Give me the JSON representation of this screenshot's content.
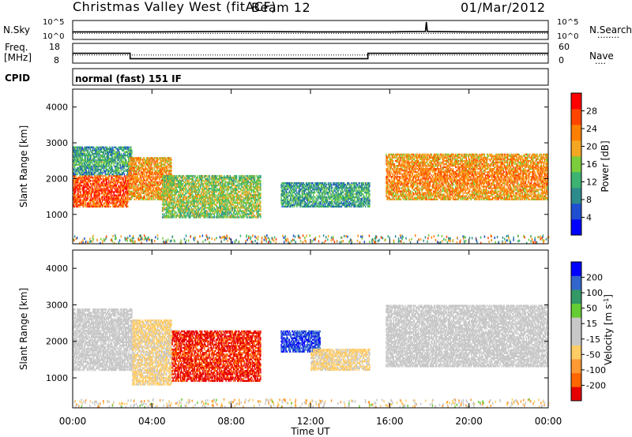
{
  "header": {
    "site": "Christmas Valley West (fitACF)",
    "beam": "Beam 12",
    "date": "01/Mar/2012"
  },
  "nsky_panel": {
    "left_label": "N.Sky",
    "left_ticks": [
      "10^5",
      "10^0"
    ],
    "right_ticks": [
      "10^5",
      "10^0"
    ],
    "right_label": "N.Search",
    "right_dots": "........"
  },
  "freq_panel": {
    "label_line1": "Freq.",
    "label_line2": "[MHz]",
    "left_ticks": [
      "18",
      "8"
    ],
    "right_ticks": [
      "60",
      "0"
    ],
    "right_label": "Nave",
    "right_dots": "...."
  },
  "cpid_panel": {
    "label": "CPID",
    "text": "normal (fast) 151 IF"
  },
  "x_axis": {
    "label": "Time UT",
    "ticks": [
      "00:00",
      "04:00",
      "08:00",
      "12:00",
      "16:00",
      "20:00",
      "00:00"
    ]
  },
  "power_panel": {
    "ylabel": "Slant Range [km]",
    "yticks": [
      "4000",
      "3000",
      "2000",
      "1000"
    ],
    "colorbar_label": "Power [dB]",
    "colorbar_ticks": [
      "28",
      "24",
      "20",
      "16",
      "12",
      "8",
      "4"
    ]
  },
  "velocity_panel": {
    "ylabel": "Slant Range [km]",
    "yticks": [
      "4000",
      "3000",
      "2000",
      "1000"
    ],
    "colorbar_label": "Velocity [m s",
    "colorbar_label_sup": "-1",
    "colorbar_label_end": "]",
    "colorbar_ticks": [
      "200",
      "100",
      "50",
      "15",
      "-15",
      "-50",
      "-100",
      "-200"
    ]
  },
  "colors": {
    "power_scale": [
      "#0000ff",
      "#1f4fd0",
      "#2e8b8b",
      "#3cb371",
      "#7ccd3c",
      "#f5a623",
      "#ff7f00",
      "#ff4500",
      "#ff0000"
    ],
    "velocity_scale": [
      "#e60000",
      "#ff6600",
      "#ff9933",
      "#ffcc66",
      "#c8c8c8",
      "#c8c8c8",
      "#66cc33",
      "#339966",
      "#3366cc",
      "#0000ff"
    ]
  },
  "chart_data": [
    {
      "type": "line",
      "title": "N.Sky / N.Search",
      "x_range_hours": [
        0,
        24
      ],
      "series": [
        {
          "name": "N.Sky",
          "x": [
            0,
            4,
            8,
            12,
            16,
            17.8,
            17.85,
            17.9,
            20,
            24
          ],
          "values": [
            2.0,
            2.0,
            2.1,
            2.0,
            2.0,
            2.1,
            4.6,
            2.1,
            2.0,
            2.0
          ]
        },
        {
          "name": "N.Search",
          "x": [
            0,
            24
          ],
          "values": [
            1.6,
            1.6
          ]
        }
      ]
    },
    {
      "type": "line",
      "title": "Freq. [MHz] / Nave",
      "x_range_hours": [
        0,
        24
      ],
      "series": [
        {
          "name": "Freq.",
          "x": [
            0,
            2.9,
            2.9,
            14.9,
            14.9,
            24
          ],
          "values": [
            15.3,
            15.3,
            11.3,
            11.3,
            15.3,
            15.3
          ]
        },
        {
          "name": "Nave",
          "x": [
            0,
            24
          ],
          "values": [
            28,
            28
          ]
        }
      ]
    },
    {
      "type": "heatmap",
      "title": "Power [dB]",
      "xlabel": "Time UT",
      "ylabel": "Slant Range [km]",
      "x_range_hours": [
        0,
        24
      ],
      "ylim": [
        180,
        4500
      ],
      "value_range": [
        0,
        30
      ],
      "echo_bands": [
        {
          "t0": 0.0,
          "t1": 2.8,
          "r_low": 1200,
          "r_high": 2100,
          "power": 26
        },
        {
          "t0": 0.0,
          "t1": 3.0,
          "r_low": 2100,
          "r_high": 2900,
          "power": 12
        },
        {
          "t0": 2.8,
          "t1": 5.0,
          "r_low": 1400,
          "r_high": 2600,
          "power": 22
        },
        {
          "t0": 4.5,
          "t1": 9.5,
          "r_low": 900,
          "r_high": 2100,
          "power": 16
        },
        {
          "t0": 10.5,
          "t1": 15.0,
          "r_low": 1200,
          "r_high": 1900,
          "power": 12
        },
        {
          "t0": 15.8,
          "t1": 24.0,
          "r_low": 1400,
          "r_high": 2700,
          "power": 22
        }
      ]
    },
    {
      "type": "heatmap",
      "title": "Velocity [m s-1]",
      "xlabel": "Time UT",
      "ylabel": "Slant Range [km]",
      "x_range_hours": [
        0,
        24
      ],
      "ylim": [
        180,
        4500
      ],
      "value_range": [
        -250,
        250
      ],
      "echo_bands": [
        {
          "t0": 0.0,
          "t1": 3.0,
          "r_low": 1200,
          "r_high": 2900,
          "velocity": 0
        },
        {
          "t0": 3.0,
          "t1": 5.0,
          "r_low": 800,
          "r_high": 2600,
          "velocity": -50
        },
        {
          "t0": 5.0,
          "t1": 9.5,
          "r_low": 900,
          "r_high": 2300,
          "velocity": -200
        },
        {
          "t0": 10.5,
          "t1": 12.5,
          "r_low": 1700,
          "r_high": 2300,
          "velocity": 200
        },
        {
          "t0": 12.0,
          "t1": 15.0,
          "r_low": 1200,
          "r_high": 1800,
          "velocity": -50
        },
        {
          "t0": 15.8,
          "t1": 24.0,
          "r_low": 1300,
          "r_high": 3000,
          "velocity": 0
        }
      ]
    }
  ]
}
